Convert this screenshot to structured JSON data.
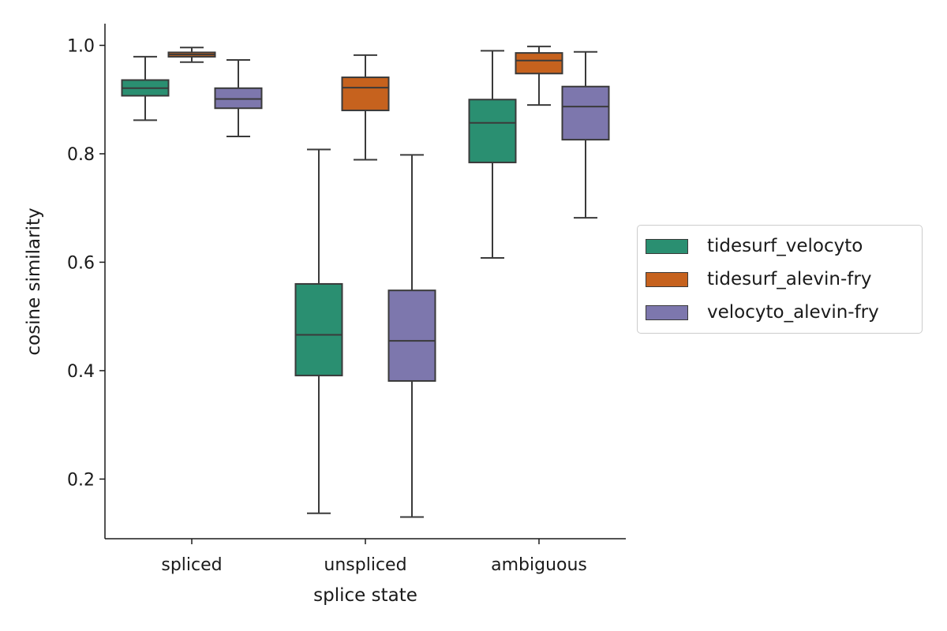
{
  "chart_data": {
    "type": "box",
    "xlabel": "splice state",
    "ylabel": "cosine similarity",
    "categories": [
      "spliced",
      "unspliced",
      "ambiguous"
    ],
    "ylim": [
      0.09,
      1.04
    ],
    "yticks": [
      0.2,
      0.4,
      0.6,
      0.8,
      1.0
    ],
    "ytick_labels": [
      "0.2",
      "0.4",
      "0.6",
      "0.8",
      "1.0"
    ],
    "legend_position": "center-right, outside plot",
    "series": [
      {
        "name": "tidesurf_velocyto",
        "color": "#2a8f71",
        "boxes": [
          {
            "min": 0.862,
            "q1": 0.907,
            "median": 0.921,
            "q3": 0.936,
            "max": 0.979
          },
          {
            "min": 0.137,
            "q1": 0.391,
            "median": 0.466,
            "q3": 0.56,
            "max": 0.808
          },
          {
            "min": 0.608,
            "q1": 0.784,
            "median": 0.857,
            "q3": 0.9,
            "max": 0.99
          }
        ]
      },
      {
        "name": "tidesurf_alevin-fry",
        "color": "#c6621e",
        "boxes": [
          {
            "min": 0.969,
            "q1": 0.979,
            "median": 0.983,
            "q3": 0.987,
            "max": 0.996
          },
          {
            "min": 0.789,
            "q1": 0.88,
            "median": 0.922,
            "q3": 0.941,
            "max": 0.982
          },
          {
            "min": 0.89,
            "q1": 0.948,
            "median": 0.972,
            "q3": 0.986,
            "max": 0.998
          }
        ]
      },
      {
        "name": "velocyto_alevin-fry",
        "color": "#7d77ad",
        "boxes": [
          {
            "min": 0.832,
            "q1": 0.884,
            "median": 0.901,
            "q3": 0.921,
            "max": 0.973
          },
          {
            "min": 0.13,
            "q1": 0.381,
            "median": 0.455,
            "q3": 0.548,
            "max": 0.798
          },
          {
            "min": 0.682,
            "q1": 0.826,
            "median": 0.887,
            "q3": 0.924,
            "max": 0.988
          }
        ]
      }
    ]
  }
}
